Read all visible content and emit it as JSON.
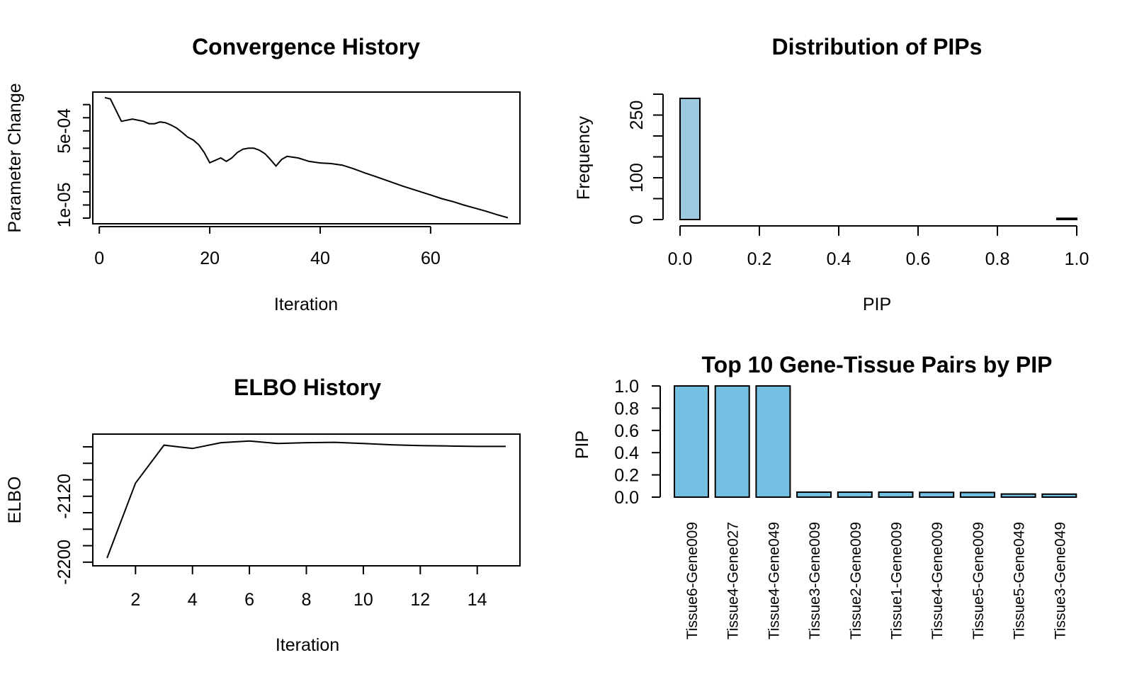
{
  "chart_data": [
    {
      "id": "convergence",
      "type": "line",
      "title": "Convergence History",
      "xlabel": "Iteration",
      "ylabel": "Parameter Change",
      "log_y": true,
      "xlim": [
        1,
        74
      ],
      "ylim": [
        5e-06,
        0.0031
      ],
      "xticks": [
        0,
        20,
        40,
        60
      ],
      "xtick_labels": [
        "0",
        "20",
        "40",
        "60"
      ],
      "yticks": [
        5e-06,
        1e-05,
        2e-05,
        5e-05,
        0.0001,
        0.0002,
        0.0005,
        0.001,
        0.002
      ],
      "yticks_labeled": [
        1e-05,
        0.0005
      ],
      "ytick_labels": [
        "1e-05",
        "5e-04"
      ],
      "x": [
        1,
        2,
        4,
        6,
        8,
        9,
        10,
        11,
        12,
        13,
        14,
        15,
        16,
        17,
        18,
        19,
        20,
        22,
        23,
        24,
        25,
        26,
        27,
        28,
        29,
        30,
        31,
        32,
        33,
        34,
        36,
        38,
        40,
        42,
        44,
        46,
        48,
        50,
        55,
        60,
        62,
        64,
        66,
        68,
        70,
        72,
        74
      ],
      "y": [
        0.0029,
        0.0027,
        0.00083,
        0.00093,
        0.00083,
        0.00073,
        0.00073,
        0.0008,
        0.00077,
        0.00068,
        0.00058,
        0.00046,
        0.00036,
        0.00031,
        0.00024,
        0.00016,
        9.3e-05,
        0.00012,
        0.0001,
        0.00012,
        0.00016,
        0.00019,
        0.0002,
        0.0002,
        0.00018,
        0.00015,
        0.00011,
        7.8e-05,
        0.00011,
        0.00013,
        0.00012,
        0.0001,
        9.2e-05,
        8.9e-05,
        8.2e-05,
        6.8e-05,
        5.5e-05,
        4.5e-05,
        2.7e-05,
        1.7e-05,
        1.4e-05,
        1.2e-05,
        1e-05,
        8.5e-06,
        7.2e-06,
        6e-06,
        5.1e-06
      ]
    },
    {
      "id": "pip-hist",
      "type": "bar",
      "title": "Distribution of PIPs",
      "xlabel": "PIP",
      "ylabel": "Frequency",
      "xlim": [
        0,
        1
      ],
      "ylim": [
        0,
        295
      ],
      "bin_width": 0.05,
      "bins_left": [
        0.0,
        0.05,
        0.1,
        0.15,
        0.2,
        0.25,
        0.3,
        0.35,
        0.4,
        0.45,
        0.5,
        0.55,
        0.6,
        0.65,
        0.7,
        0.75,
        0.8,
        0.85,
        0.9,
        0.95
      ],
      "counts": [
        290,
        0,
        0,
        0,
        0,
        0,
        0,
        0,
        0,
        0,
        0,
        0,
        0,
        0,
        0,
        0,
        0,
        0,
        0,
        3
      ],
      "fill": "#9ecae1",
      "xticks": [
        0.0,
        0.2,
        0.4,
        0.6,
        0.8,
        1.0
      ],
      "xtick_labels": [
        "0.0",
        "0.2",
        "0.4",
        "0.6",
        "0.8",
        "1.0"
      ],
      "yticks": [
        0,
        50,
        100,
        150,
        200,
        250,
        300
      ],
      "yticks_labeled": [
        0,
        100,
        250
      ],
      "ytick_labels": [
        "0",
        "100",
        "250"
      ]
    },
    {
      "id": "elbo",
      "type": "line",
      "title": "ELBO History",
      "xlabel": "Iteration",
      "ylabel": "ELBO",
      "xlim": [
        0.5,
        15.5
      ],
      "ylim": [
        -2201,
        -2048
      ],
      "xticks": [
        2,
        4,
        6,
        8,
        10,
        12,
        14
      ],
      "xtick_labels": [
        "2",
        "4",
        "6",
        "8",
        "10",
        "12",
        "14"
      ],
      "yticks": [
        -2200,
        -2180,
        -2160,
        -2140,
        -2120,
        -2100,
        -2080,
        -2060
      ],
      "yticks_labeled": [
        -2200,
        -2120
      ],
      "ytick_labels": [
        "-2200",
        "-2120"
      ],
      "x": [
        1,
        2,
        3,
        4,
        5,
        6,
        7,
        8,
        9,
        10,
        11,
        12,
        13,
        14,
        15
      ],
      "y": [
        -2195,
        -2104,
        -2058,
        -2062,
        -2055,
        -2053,
        -2056,
        -2055,
        -2054.5,
        -2056,
        -2057.5,
        -2058.5,
        -2059,
        -2059.5,
        -2059.5
      ]
    },
    {
      "id": "top10",
      "type": "bar",
      "title": "Top 10 Gene-Tissue Pairs by PIP",
      "ylabel": "PIP",
      "xlabel": "",
      "ylim": [
        0,
        1
      ],
      "fill": "#74c0e3",
      "categories": [
        "Tissue6-Gene009",
        "Tissue4-Gene027",
        "Tissue4-Gene049",
        "Tissue3-Gene009",
        "Tissue2-Gene009",
        "Tissue1-Gene009",
        "Tissue4-Gene009",
        "Tissue5-Gene009",
        "Tissue5-Gene049",
        "Tissue3-Gene049"
      ],
      "values": [
        1.0,
        1.0,
        1.0,
        0.045,
        0.045,
        0.045,
        0.043,
        0.042,
        0.028,
        0.027
      ],
      "yticks": [
        0.0,
        0.2,
        0.4,
        0.6,
        0.8,
        1.0
      ],
      "ytick_labels": [
        "0.0",
        "0.2",
        "0.4",
        "0.6",
        "0.8",
        "1.0"
      ]
    }
  ]
}
